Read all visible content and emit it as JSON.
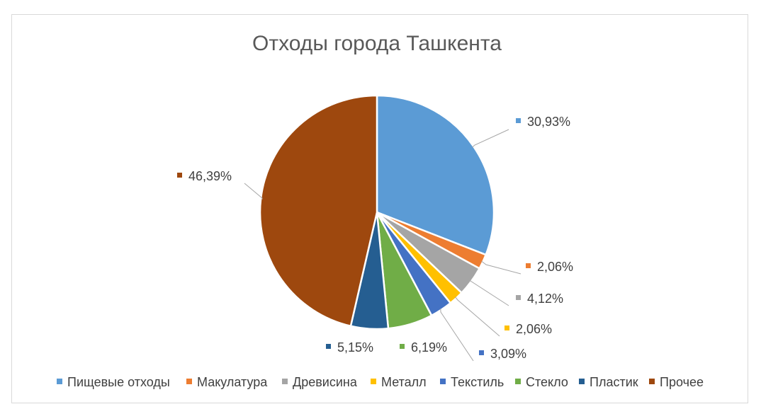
{
  "chart_data": {
    "type": "pie",
    "title": "Отходы города Ташкента",
    "legend_position": "bottom",
    "slices": [
      {
        "name": "Пищевые отходы",
        "value": 30.93,
        "label": "30,93%",
        "color": "#5B9BD5"
      },
      {
        "name": "Макулатура",
        "value": 2.06,
        "label": "2,06%",
        "color": "#ED7D31"
      },
      {
        "name": "Древисина",
        "value": 4.12,
        "label": "4,12%",
        "color": "#A5A5A5"
      },
      {
        "name": "Металл",
        "value": 2.06,
        "label": "2,06%",
        "color": "#FFC000"
      },
      {
        "name": "Текстиль",
        "value": 3.09,
        "label": "3,09%",
        "color": "#4472C4"
      },
      {
        "name": "Стекло",
        "value": 6.19,
        "label": "6,19%",
        "color": "#70AD47"
      },
      {
        "name": "Пластик",
        "value": 5.15,
        "label": "5,15%",
        "color": "#255E91"
      },
      {
        "name": "Прочее",
        "value": 46.39,
        "label": "46,39%",
        "color": "#9E480E"
      }
    ]
  }
}
